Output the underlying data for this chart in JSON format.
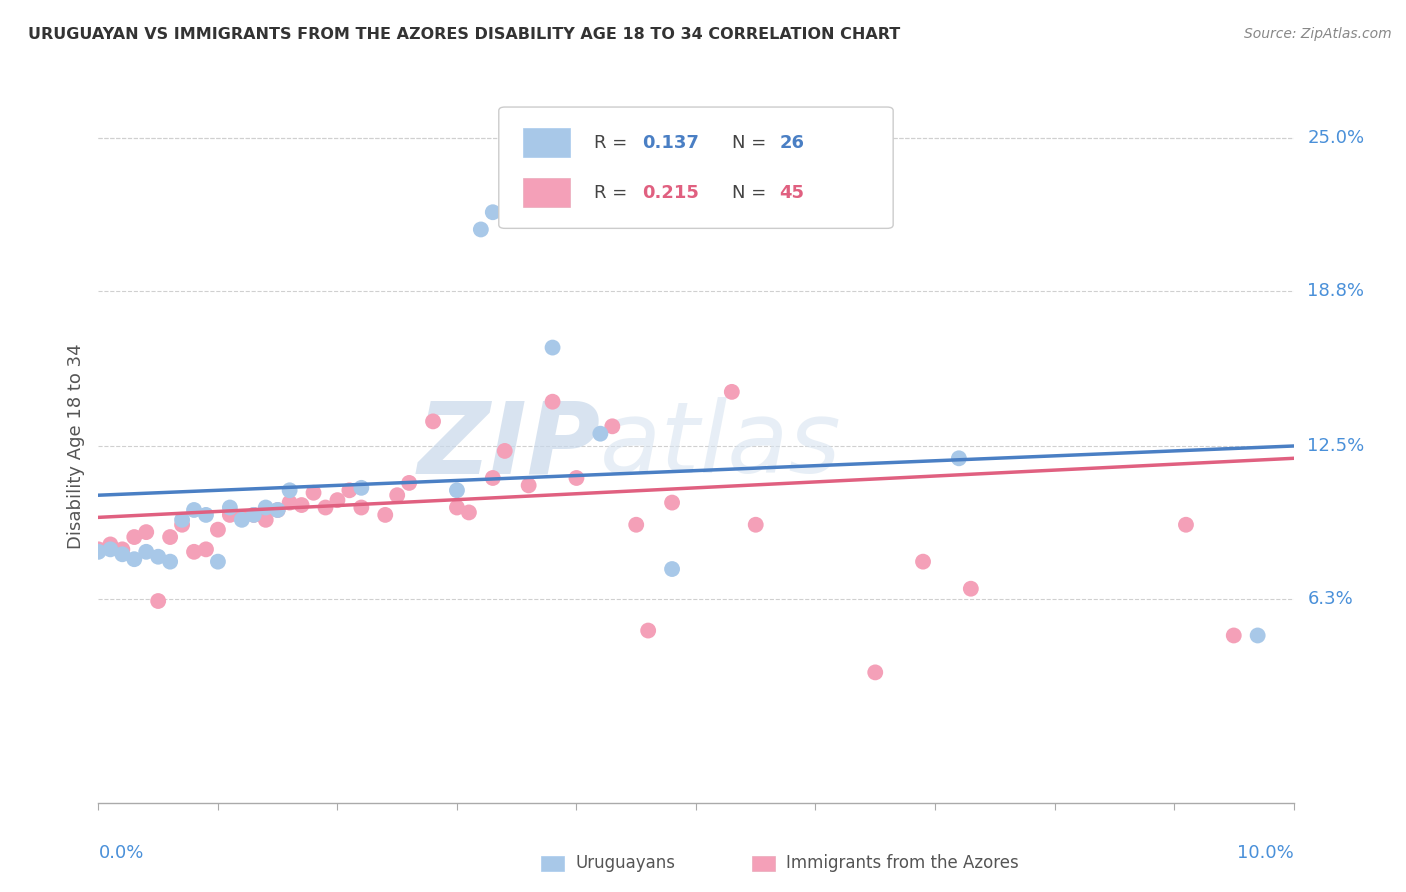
{
  "title": "URUGUAYAN VS IMMIGRANTS FROM THE AZORES DISABILITY AGE 18 TO 34 CORRELATION CHART",
  "source": "Source: ZipAtlas.com",
  "ylabel": "Disability Age 18 to 34",
  "ytick_labels": [
    "6.3%",
    "12.5%",
    "18.8%",
    "25.0%"
  ],
  "ytick_values": [
    0.063,
    0.125,
    0.188,
    0.25
  ],
  "xlim": [
    0.0,
    0.1
  ],
  "ylim": [
    -0.02,
    0.27
  ],
  "uruguayan_color": "#a8c8e8",
  "azores_color": "#f4a0b8",
  "trend_blue": "#4a7fc4",
  "trend_pink": "#e06080",
  "watermark_zip": "ZIP",
  "watermark_atlas": "atlas",
  "uruguayan_x": [
    0.0,
    0.001,
    0.002,
    0.003,
    0.004,
    0.005,
    0.006,
    0.007,
    0.008,
    0.009,
    0.01,
    0.011,
    0.012,
    0.013,
    0.014,
    0.015,
    0.016,
    0.022,
    0.03,
    0.032,
    0.033,
    0.038,
    0.042,
    0.048,
    0.072,
    0.097
  ],
  "uruguayan_y": [
    0.082,
    0.083,
    0.081,
    0.079,
    0.082,
    0.08,
    0.078,
    0.095,
    0.099,
    0.097,
    0.078,
    0.1,
    0.095,
    0.097,
    0.1,
    0.099,
    0.107,
    0.108,
    0.107,
    0.213,
    0.22,
    0.165,
    0.13,
    0.075,
    0.12,
    0.048
  ],
  "azores_x": [
    0.0,
    0.001,
    0.002,
    0.003,
    0.004,
    0.005,
    0.006,
    0.007,
    0.008,
    0.009,
    0.01,
    0.011,
    0.012,
    0.013,
    0.014,
    0.015,
    0.016,
    0.017,
    0.018,
    0.019,
    0.02,
    0.021,
    0.022,
    0.024,
    0.025,
    0.026,
    0.028,
    0.03,
    0.031,
    0.033,
    0.034,
    0.036,
    0.038,
    0.04,
    0.043,
    0.045,
    0.046,
    0.048,
    0.053,
    0.055,
    0.065,
    0.069,
    0.073,
    0.091,
    0.095
  ],
  "azores_y": [
    0.083,
    0.085,
    0.083,
    0.088,
    0.09,
    0.062,
    0.088,
    0.093,
    0.082,
    0.083,
    0.091,
    0.097,
    0.096,
    0.097,
    0.095,
    0.099,
    0.102,
    0.101,
    0.106,
    0.1,
    0.103,
    0.107,
    0.1,
    0.097,
    0.105,
    0.11,
    0.135,
    0.1,
    0.098,
    0.112,
    0.123,
    0.109,
    0.143,
    0.112,
    0.133,
    0.093,
    0.05,
    0.102,
    0.147,
    0.093,
    0.033,
    0.078,
    0.067,
    0.093,
    0.048
  ],
  "trend_blue_x0": 0.0,
  "trend_blue_y0": 0.105,
  "trend_blue_x1": 0.1,
  "trend_blue_y1": 0.125,
  "trend_pink_x0": 0.0,
  "trend_pink_y0": 0.096,
  "trend_pink_x1": 0.1,
  "trend_pink_y1": 0.12
}
